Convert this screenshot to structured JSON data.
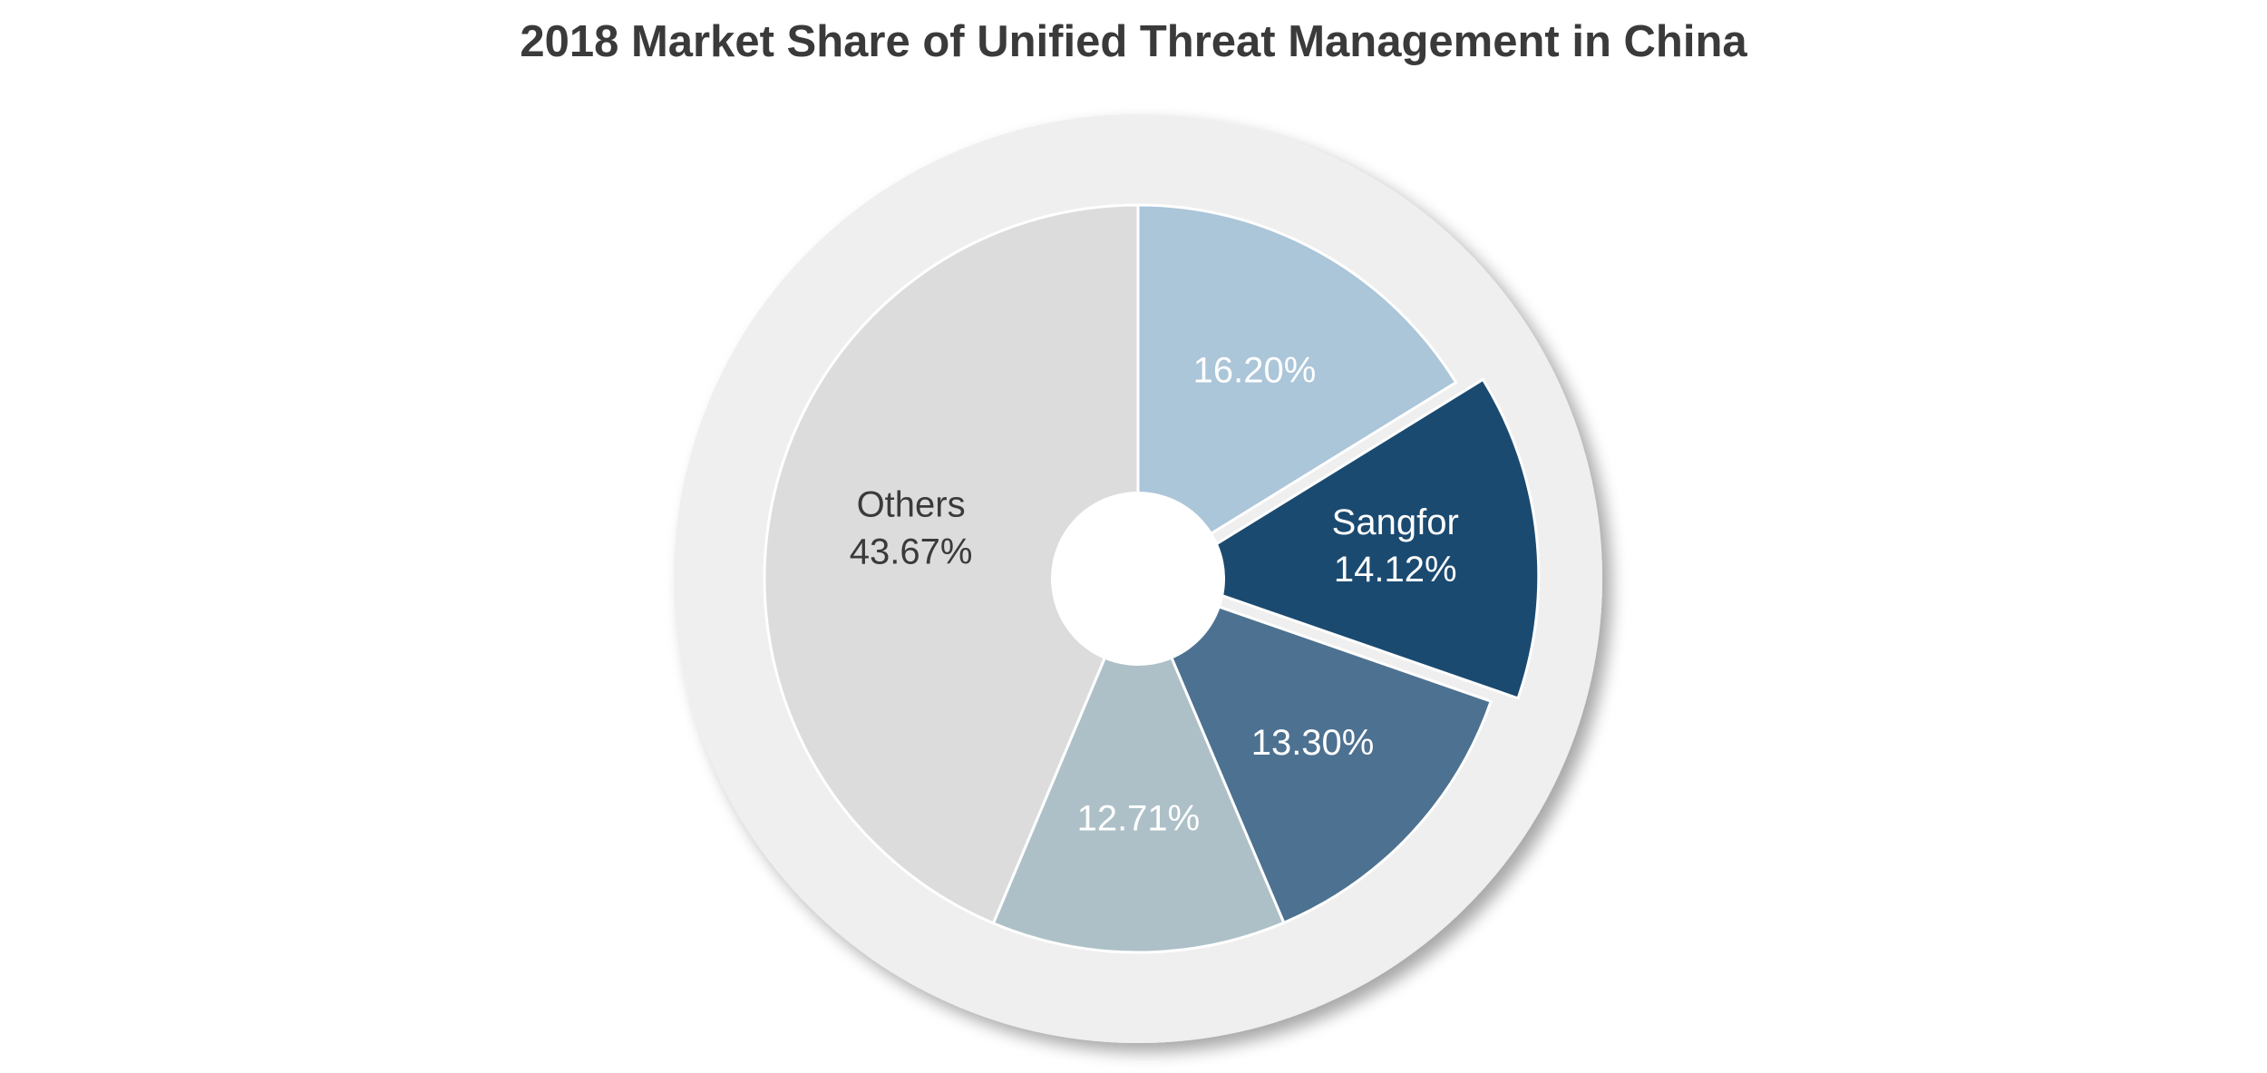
{
  "chart_data": {
    "type": "pie",
    "title": "2018 Market Share of Unified Threat Management in China",
    "donut": true,
    "series": [
      {
        "name": "",
        "value": 16.2,
        "label_text": "16.20%",
        "color": "#abc5d9",
        "text_color": "#ffffff",
        "exploded": false
      },
      {
        "name": "Sangfor",
        "value": 14.12,
        "label_text": "14.12%",
        "color": "#1b4a70",
        "text_color": "#ffffff",
        "exploded": true
      },
      {
        "name": "",
        "value": 13.3,
        "label_text": "13.30%",
        "color": "#4d7190",
        "text_color": "#ffffff",
        "exploded": false
      },
      {
        "name": "",
        "value": 12.71,
        "label_text": "12.71%",
        "color": "#adc0c8",
        "text_color": "#ffffff",
        "exploded": false
      },
      {
        "name": "Others",
        "value": 43.67,
        "label_text": "43.67%",
        "color": "#dcdcdc",
        "text_color": "#3a3a3a",
        "exploded": false
      }
    ],
    "ring_color": "#efefef",
    "legend": "none"
  }
}
